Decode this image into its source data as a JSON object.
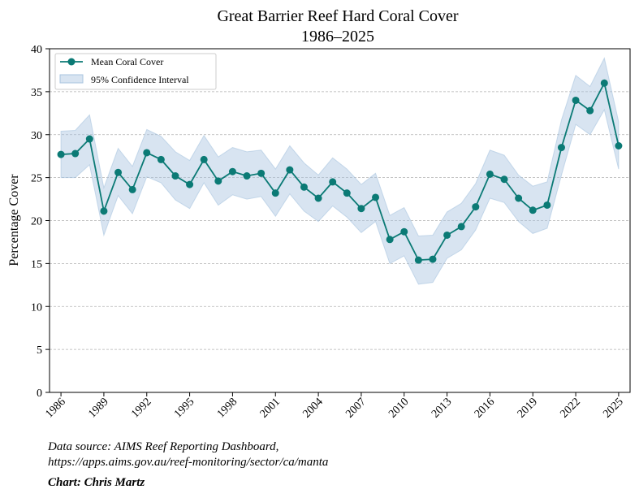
{
  "chart_data": {
    "type": "line",
    "title": "Great Barrier Reef Hard Coral Cover",
    "subtitle": "1986–2025",
    "xlabel": "",
    "ylabel": "Percentage Cover",
    "xlim": [
      1985.2,
      2025.8
    ],
    "ylim": [
      0,
      40
    ],
    "x_ticks": [
      1986,
      1989,
      1992,
      1995,
      1998,
      2001,
      2004,
      2007,
      2010,
      2013,
      2016,
      2019,
      2022,
      2025
    ],
    "y_ticks": [
      0,
      5,
      10,
      15,
      20,
      25,
      30,
      35,
      40
    ],
    "grid": "horizontal dashed",
    "legend_position": "top-left",
    "series": [
      {
        "name": "Mean Coral Cover",
        "color": "#0b7a75",
        "x": [
          1986,
          1987,
          1988,
          1989,
          1990,
          1991,
          1992,
          1993,
          1994,
          1995,
          1996,
          1997,
          1998,
          1999,
          2000,
          2001,
          2002,
          2003,
          2004,
          2005,
          2006,
          2007,
          2008,
          2009,
          2010,
          2011,
          2012,
          2013,
          2014,
          2015,
          2016,
          2017,
          2018,
          2019,
          2020,
          2021,
          2022,
          2023,
          2024,
          2025
        ],
        "y": [
          27.7,
          27.8,
          29.5,
          21.1,
          25.6,
          23.6,
          27.9,
          27.1,
          25.2,
          24.2,
          27.1,
          24.6,
          25.7,
          25.2,
          25.5,
          23.2,
          25.9,
          23.9,
          22.6,
          24.5,
          23.2,
          21.4,
          22.7,
          17.8,
          18.7,
          15.4,
          15.5,
          18.3,
          19.3,
          21.6,
          25.4,
          24.8,
          22.6,
          21.2,
          21.8,
          28.5,
          34.0,
          32.8,
          36.0,
          28.7
        ]
      },
      {
        "name": "95% Confidence Interval",
        "color": "#a9c4df",
        "lower": [
          25.0,
          25.0,
          26.5,
          18.3,
          22.9,
          20.8,
          25.1,
          24.4,
          22.4,
          21.4,
          24.4,
          21.8,
          23.0,
          22.5,
          22.8,
          20.5,
          23.1,
          21.1,
          19.9,
          21.7,
          20.4,
          18.6,
          19.9,
          15.0,
          15.9,
          12.6,
          12.8,
          15.6,
          16.6,
          18.9,
          22.6,
          22.1,
          19.9,
          18.5,
          19.1,
          25.3,
          31.2,
          30.0,
          32.9,
          26.0
        ],
        "upper": [
          30.4,
          30.5,
          32.3,
          23.8,
          28.4,
          26.3,
          30.6,
          29.8,
          28.0,
          27.0,
          29.9,
          27.4,
          28.5,
          28.0,
          28.2,
          26.0,
          28.7,
          26.7,
          25.3,
          27.3,
          26.0,
          24.2,
          25.5,
          20.6,
          21.5,
          18.2,
          18.3,
          21.0,
          22.0,
          24.3,
          28.2,
          27.6,
          25.3,
          24.0,
          24.5,
          31.7,
          36.9,
          35.6,
          38.9,
          31.5
        ]
      }
    ]
  },
  "footnote": {
    "source_line1": "Data source: AIMS Reef Reporting Dashboard,",
    "source_line2": "https://apps.aims.gov.au/reef-monitoring/sector/ca/manta",
    "credit": "Chart: Chris Martz"
  }
}
